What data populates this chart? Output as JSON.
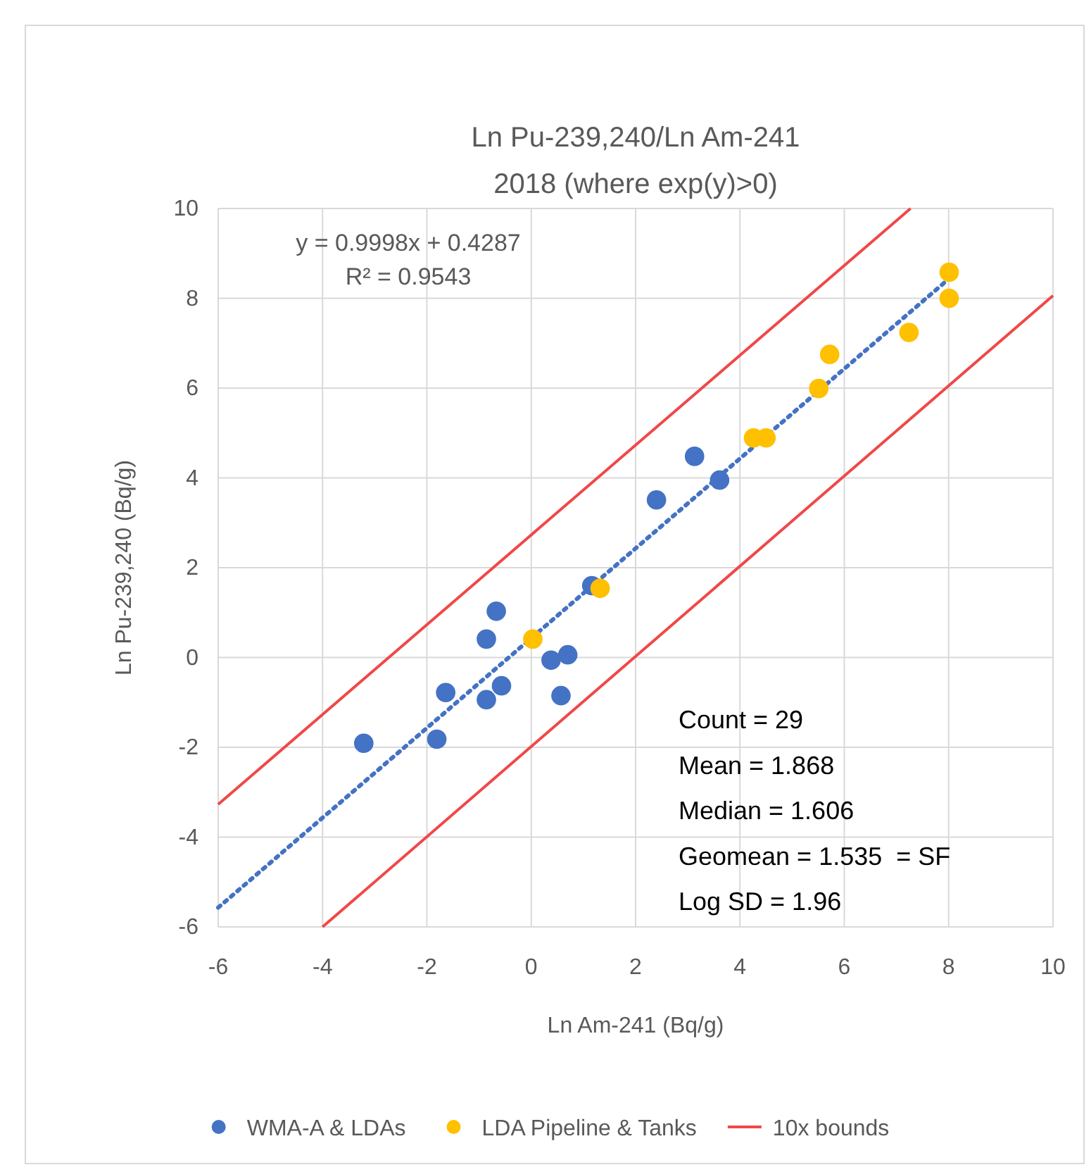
{
  "chart_data": {
    "type": "scatter",
    "title": "Ln Pu-239,240/Ln Am-241",
    "subtitle": "2018 (where exp(y)>0)",
    "xlabel": "Ln Am-241 (Bq/g)",
    "ylabel": "Ln Pu-239,240 (Bq/g)",
    "xlim": [
      -6,
      10
    ],
    "xticks": [
      -6,
      -4,
      -2,
      0,
      2,
      4,
      6,
      8,
      10
    ],
    "ylim": [
      -6,
      10
    ],
    "yticks": [
      -6,
      -4,
      -2,
      0,
      2,
      4,
      6,
      8,
      10
    ],
    "grid": true,
    "legend": "bottom",
    "series": [
      {
        "name": "WMA-A & LDAs",
        "color": "#4472c4",
        "marker": "circle",
        "x": [
          -3.21,
          -1.81,
          -1.64,
          -0.86,
          -0.86,
          -0.67,
          -0.57,
          0.38,
          0.7,
          0.57,
          1.16,
          2.4,
          3.13,
          3.61
        ],
        "values": [
          -1.91,
          -1.82,
          -0.78,
          -0.94,
          0.41,
          1.03,
          -0.63,
          -0.06,
          0.06,
          -0.85,
          1.6,
          3.51,
          4.48,
          3.95
        ]
      },
      {
        "name": "LDA Pipeline & Tanks",
        "color": "#ffc000",
        "marker": "circle",
        "x": [
          0.03,
          1.32,
          4.26,
          4.5,
          5.51,
          5.72,
          7.24,
          8.01,
          8.01
        ],
        "values": [
          0.41,
          1.54,
          4.89,
          4.89,
          5.99,
          6.75,
          7.24,
          8.58,
          8.0
        ]
      },
      {
        "name": "10x bounds",
        "type": "line",
        "color": "#f04848",
        "marker": "none",
        "line_style": "solid",
        "x": [
          -6,
          7.27
        ],
        "values": [
          -3.27,
          10
        ]
      },
      {
        "type": "line",
        "color": "#f04848",
        "marker": "none",
        "line_style": "solid",
        "x": [
          -4,
          10
        ],
        "values": [
          -6,
          8.06
        ]
      },
      {
        "type": "line",
        "color": "#4472c4",
        "marker": "none",
        "line_style": "dotted",
        "x": [
          -6,
          8
        ],
        "values": [
          -5.57,
          8.43
        ]
      }
    ],
    "annotations": [
      "y = 0.9998x + 0.4287",
      "R² = 0.9543",
      "Count = 29",
      "Mean = 1.868",
      "Median = 1.606",
      "Geomean = 1.535  = SF",
      "Log SD = 1.96"
    ]
  }
}
